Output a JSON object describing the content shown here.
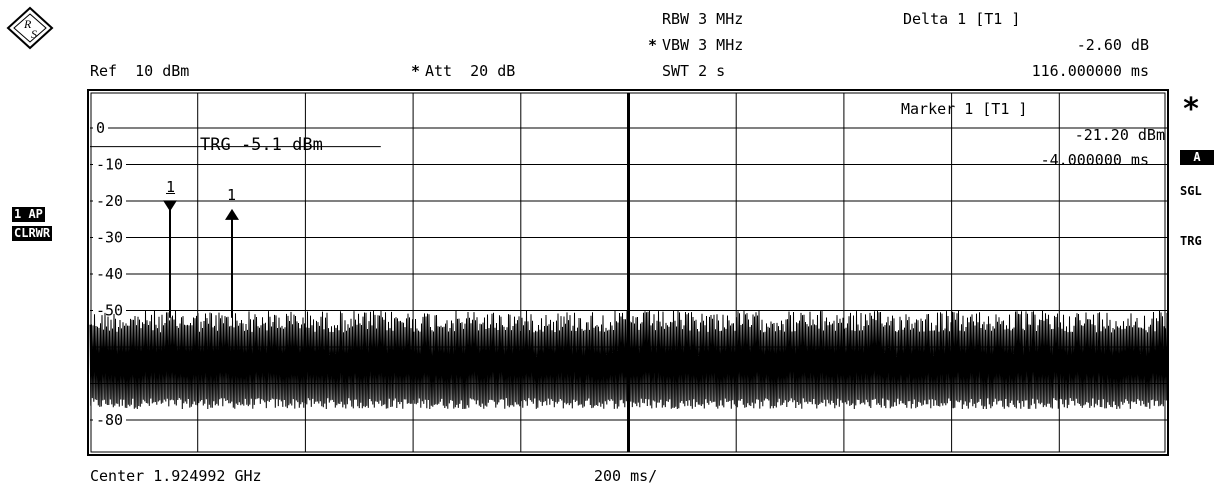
{
  "header": {
    "ref": "Ref  10 dBm",
    "att": "Att  20 dB",
    "att_star": "*",
    "rbw": "RBW 3 MHz",
    "vbw": "VBW 3 MHz",
    "vbw_star": "*",
    "swt": "SWT 2 s",
    "delta_title": "Delta 1 [T1 ]",
    "delta_level": "-2.60 dB",
    "delta_time": "116.000000 ms"
  },
  "marker": {
    "title": "Marker 1 [T1 ]",
    "level": "-21.20 dBm",
    "time": "-4.000000 ms",
    "label_1": "1",
    "label_delta": "1"
  },
  "trigger_label": "TRG -5.1 dBm",
  "left_badges": {
    "trace": "1 AP",
    "mode": "CLRWR"
  },
  "right_side": {
    "star": "*",
    "badge": "A",
    "sgl": "SGL",
    "trg": "TRG"
  },
  "footer": {
    "center": "Center 1.924992 GHz",
    "span": "200 ms/"
  },
  "chart_data": {
    "type": "line",
    "ylim": [
      -90,
      10
    ],
    "y_ticks": [
      {
        "value": 0,
        "label": "0"
      },
      {
        "value": -10,
        "label": "-10"
      },
      {
        "value": -20,
        "label": "-20"
      },
      {
        "value": -30,
        "label": "-30"
      },
      {
        "value": -40,
        "label": "-40"
      },
      {
        "value": -50,
        "label": "-50"
      },
      {
        "value": -60,
        "label": ""
      },
      {
        "value": -70,
        "label": ""
      },
      {
        "value": -80,
        "label": "-80"
      }
    ],
    "x_divisions": 10,
    "trigger_level_dbm": -5.1,
    "noise_floor_range_dbm": [
      -77,
      -50
    ],
    "markers": [
      {
        "name": "1",
        "time_ms": -4.0,
        "level_dbm": -21.2,
        "symbol": "down"
      },
      {
        "name": "1",
        "time_ms": 112.0,
        "level_dbm": -23.8,
        "symbol": "up"
      }
    ],
    "grid": true
  }
}
